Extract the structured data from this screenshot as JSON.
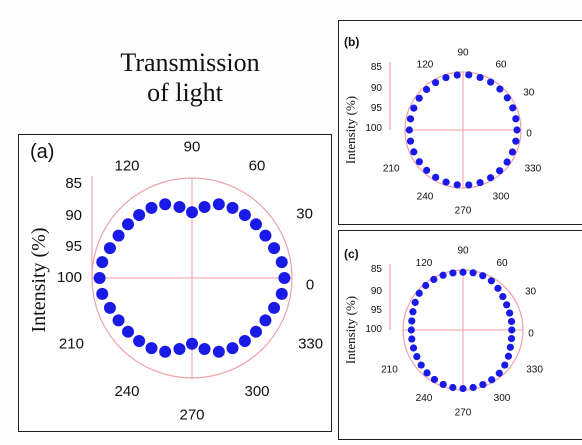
{
  "heading": {
    "line1": "Transmission",
    "line2": "of light"
  },
  "colors": {
    "marker": "#1a1ae6",
    "grid": "#f0a0a8",
    "text": "#111111",
    "frame": "#222222"
  },
  "chart_data": [
    {
      "panel_label": "(a)",
      "type": "scatter",
      "projection": "polar",
      "angle_unit": "degrees",
      "angle_tick_labels": [
        "0",
        "30",
        "60",
        "90",
        "120",
        "210",
        "240",
        "270",
        "300",
        "330"
      ],
      "ylabel": "Intensity (%)",
      "radial_tick_labels": [
        "85",
        "90",
        "95",
        "100"
      ],
      "rlim": [
        85,
        100
      ],
      "shape": "figure-eight, lobes along 0-180",
      "grid": true,
      "series": [
        {
          "points": [
            [
              0,
              97
            ],
            [
              10,
              96.5
            ],
            [
              20,
              95
            ],
            [
              30,
              94
            ],
            [
              40,
              93.5
            ],
            [
              50,
              93
            ],
            [
              60,
              92.5
            ],
            [
              70,
              91.5
            ],
            [
              80,
              89
            ],
            [
              90,
              86.5
            ],
            [
              100,
              89
            ],
            [
              110,
              91.5
            ],
            [
              120,
              92.5
            ],
            [
              130,
              93
            ],
            [
              140,
              93.5
            ],
            [
              150,
              94
            ],
            [
              160,
              95
            ],
            [
              170,
              96.5
            ],
            [
              180,
              97
            ],
            [
              190,
              96.5
            ],
            [
              200,
              95
            ],
            [
              210,
              94
            ],
            [
              220,
              93.5
            ],
            [
              230,
              93
            ],
            [
              240,
              92.5
            ],
            [
              250,
              91.5
            ],
            [
              260,
              89
            ],
            [
              270,
              86.5
            ],
            [
              280,
              89
            ],
            [
              290,
              91.5
            ],
            [
              300,
              92.5
            ],
            [
              310,
              93
            ],
            [
              320,
              93.5
            ],
            [
              330,
              94
            ],
            [
              340,
              95
            ],
            [
              350,
              96.5
            ]
          ]
        }
      ]
    },
    {
      "panel_label": "(b)",
      "type": "scatter",
      "projection": "polar",
      "angle_unit": "degrees",
      "angle_tick_labels": [
        "0",
        "30",
        "60",
        "90",
        "120",
        "210",
        "240",
        "270",
        "300",
        "330"
      ],
      "ylabel": "Intensity (%)",
      "radial_tick_labels": [
        "85",
        "90",
        "95",
        "100"
      ],
      "rlim": [
        85,
        100
      ],
      "shape": "nearly circular",
      "grid": true,
      "series": [
        {
          "points": [
            [
              0,
              97.5
            ],
            [
              12,
              97.5
            ],
            [
              24,
              97.8
            ],
            [
              36,
              98
            ],
            [
              48,
              98.2
            ],
            [
              60,
              98.3
            ],
            [
              72,
              98.3
            ],
            [
              84,
              98.4
            ],
            [
              96,
              98.3
            ],
            [
              108,
              98.2
            ],
            [
              120,
              98
            ],
            [
              132,
              97.8
            ],
            [
              144,
              97.6
            ],
            [
              156,
              97.4
            ],
            [
              168,
              97.3
            ],
            [
              180,
              97.3
            ],
            [
              192,
              97.3
            ],
            [
              204,
              97.4
            ],
            [
              216,
              97.5
            ],
            [
              228,
              97.7
            ],
            [
              240,
              97.9
            ],
            [
              252,
              98
            ],
            [
              264,
              98.2
            ],
            [
              276,
              98.3
            ],
            [
              288,
              98.3
            ],
            [
              300,
              98.2
            ],
            [
              312,
              98
            ],
            [
              324,
              97.8
            ],
            [
              336,
              97.6
            ],
            [
              348,
              97.5
            ]
          ]
        }
      ]
    },
    {
      "panel_label": "(c)",
      "type": "scatter",
      "projection": "polar",
      "angle_unit": "degrees",
      "angle_tick_labels": [
        "0",
        "30",
        "60",
        "90",
        "120",
        "210",
        "240",
        "270",
        "300",
        "330"
      ],
      "ylabel": "Intensity (%)",
      "radial_tick_labels": [
        "85",
        "90",
        "95",
        "100"
      ],
      "rlim": [
        85,
        100
      ],
      "shape": "tilted S / peanut shape",
      "grid": true,
      "series": [
        {
          "points": [
            [
              0,
              93
            ],
            [
              10,
              93.3
            ],
            [
              20,
              93.5
            ],
            [
              30,
              94
            ],
            [
              40,
              95
            ],
            [
              50,
              96.5
            ],
            [
              60,
              98
            ],
            [
              70,
              98.6
            ],
            [
              80,
              98.8
            ],
            [
              90,
              98.6
            ],
            [
              100,
              98.7
            ],
            [
              110,
              98.9
            ],
            [
              120,
              99
            ],
            [
              130,
              98.8
            ],
            [
              140,
              98.2
            ],
            [
              150,
              97
            ],
            [
              160,
              95.8
            ],
            [
              170,
              95
            ],
            [
              180,
              94.8
            ],
            [
              190,
              95
            ],
            [
              200,
              95.4
            ],
            [
              210,
              95.8
            ],
            [
              220,
              96.6
            ],
            [
              230,
              97.5
            ],
            [
              240,
              98.2
            ],
            [
              250,
              98.7
            ],
            [
              260,
              99
            ],
            [
              270,
              99.1
            ],
            [
              280,
              99
            ],
            [
              290,
              98.8
            ],
            [
              300,
              98.4
            ],
            [
              310,
              97.8
            ],
            [
              320,
              96.6
            ],
            [
              330,
              95.3
            ],
            [
              340,
              94
            ],
            [
              350,
              93.3
            ]
          ]
        }
      ]
    }
  ]
}
